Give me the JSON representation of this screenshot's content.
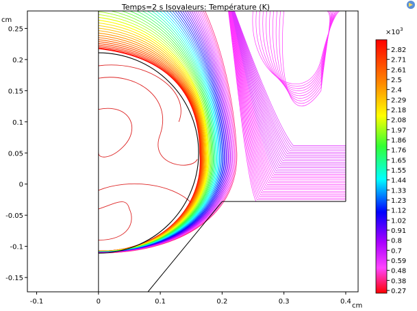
{
  "chart_data": {
    "type": "contour",
    "title": "Temps=2 s   Isovaleurs: Température (K)",
    "xlabel": "",
    "ylabel": "",
    "x_unit": "cm",
    "y_unit": "cm",
    "xlim": [
      -0.115,
      0.42
    ],
    "ylim": [
      -0.173,
      0.278
    ],
    "x_ticks": [
      "-0.1",
      "0",
      "0.1",
      "0.2",
      "0.3",
      "0.4"
    ],
    "y_ticks": [
      "0.25",
      "0.2",
      "0.15",
      "0.1",
      "0.05",
      "0",
      "-0.05",
      "-0.1",
      "-0.15"
    ],
    "colorbar": {
      "multiplier_base": "×10",
      "multiplier_exp": "3",
      "levels": [
        "2.82",
        "2.71",
        "2.61",
        "2.5",
        "2.4",
        "2.29",
        "2.18",
        "2.08",
        "1.97",
        "1.86",
        "1.76",
        "1.65",
        "1.55",
        "1.44",
        "1.33",
        "1.23",
        "1.12",
        "1.02",
        "0.91",
        "0.8",
        "0.7",
        "0.59",
        "0.48",
        "0.38",
        "0.27"
      ],
      "min": 0.27,
      "max": 2.82
    },
    "geometry": {
      "circle_center": [
        0,
        0.05
      ],
      "circle_radius": 0.162,
      "left_wall_x": 0,
      "right_wall_x": 0.4,
      "step_y": -0.028,
      "step_x": 0.2
    },
    "colormap": "rainbow"
  }
}
